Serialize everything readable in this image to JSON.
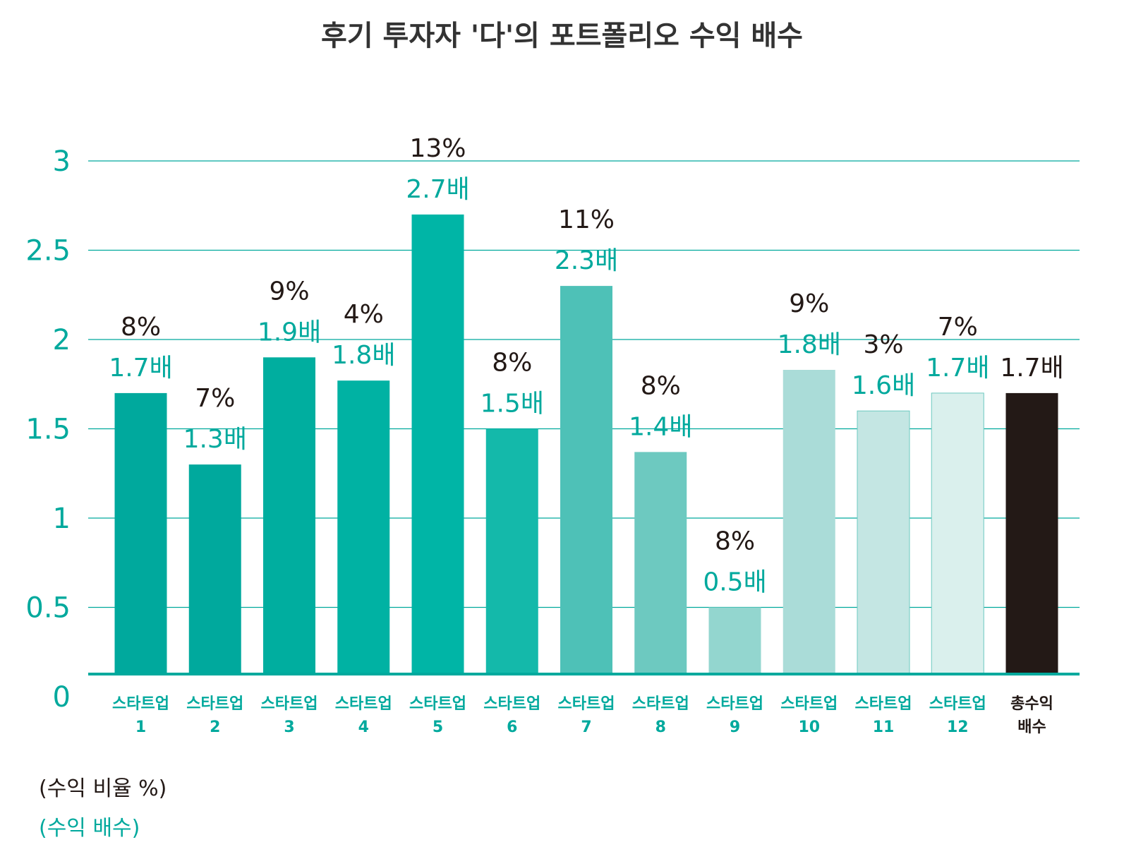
{
  "chart_data": {
    "type": "bar",
    "title": "후기 투자자 '다'의 포트폴리오 수익 배수",
    "ylim": [
      0,
      3
    ],
    "yticks": [
      "0",
      "0.5",
      "1",
      "1.5",
      "2",
      "2.5",
      "3"
    ],
    "grid": true,
    "categories": [
      [
        "스타트업",
        "1"
      ],
      [
        "스타트업",
        "2"
      ],
      [
        "스타트업",
        "3"
      ],
      [
        "스타트업",
        "4"
      ],
      [
        "스타트업",
        "5"
      ],
      [
        "스타트업",
        "6"
      ],
      [
        "스타트업",
        "7"
      ],
      [
        "스타트업",
        "8"
      ],
      [
        "스타트업",
        "9"
      ],
      [
        "스타트업",
        "10"
      ],
      [
        "스타트업",
        "11"
      ],
      [
        "스타트업",
        "12"
      ],
      [
        "총수익",
        "배수"
      ]
    ],
    "values": [
      1.7,
      1.3,
      1.9,
      1.77,
      2.7,
      1.5,
      2.3,
      1.37,
      0.5,
      1.83,
      1.6,
      1.7,
      1.7
    ],
    "multiple_labels": [
      "1.7배",
      "1.3배",
      "1.9배",
      "1.8배",
      "2.7배",
      "1.5배",
      "2.3배",
      "1.4배",
      "0.5배",
      "1.8배",
      "1.6배",
      "1.7배",
      "1.7배"
    ],
    "percent_labels": [
      "8%",
      "7%",
      "9%",
      "4%",
      "13%",
      "8%",
      "11%",
      "8%",
      "8%",
      "9%",
      "3%",
      "7%",
      ""
    ],
    "bar_colors": [
      "#00a99d",
      "#00a99d",
      "#00ae9f",
      "#00b2a3",
      "#00b5a6",
      "#14b9aa",
      "#4ec1b7",
      "#6dc9c0",
      "#93d6cf",
      "#aadcd8",
      "#c4e6e3",
      "#daf0ed",
      "#231916"
    ],
    "accent_color": "#00a99d",
    "legend": [
      {
        "label": "(수익 비율 %)",
        "color": "#231916"
      },
      {
        "label": "(수익 배수)",
        "color": "#00a99d"
      }
    ]
  }
}
